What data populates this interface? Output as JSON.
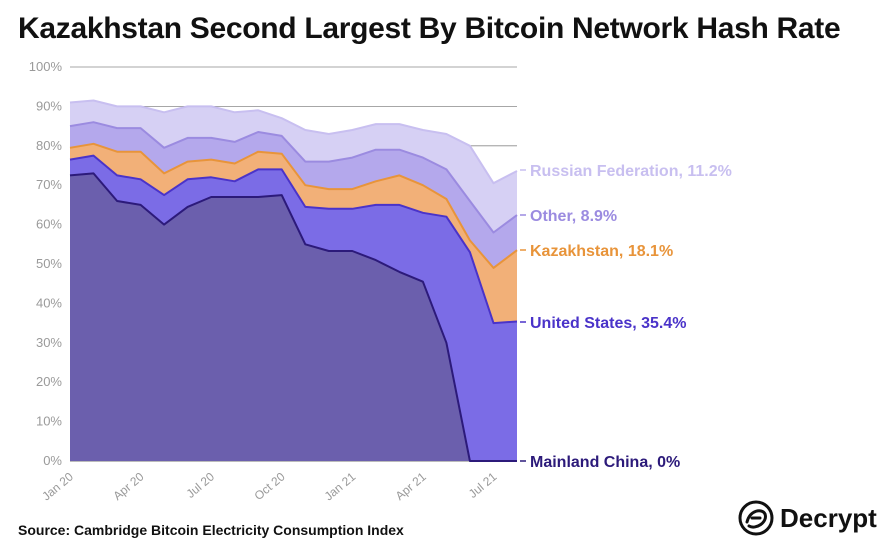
{
  "chart_data": {
    "type": "area",
    "title": "Kazakhstan Second Largest By Bitcoin Network Hash Rate",
    "source": "Source: Cambridge Bitcoin Electricity Consumption Index",
    "ylim": [
      0,
      100
    ],
    "yticks": [
      "0%",
      "10%",
      "20%",
      "30%",
      "40%",
      "50%",
      "60%",
      "70%",
      "80%",
      "90%",
      "100%"
    ],
    "yticks_values": [
      0,
      10,
      20,
      30,
      40,
      50,
      60,
      70,
      80,
      90,
      100
    ],
    "xlabels": [
      "Jan 20",
      "Apr 20",
      "Jul 20",
      "Oct 20",
      "Jan 21",
      "Apr 21",
      "Jul 21"
    ],
    "xlabel_index": [
      0,
      3,
      6,
      9,
      12,
      15,
      18
    ],
    "x": [
      "Jan 20",
      "Feb 20",
      "Mar 20",
      "Apr 20",
      "May 20",
      "Jun 20",
      "Jul 20",
      "Aug 20",
      "Sep 20",
      "Oct 20",
      "Nov 20",
      "Dec 20",
      "Jan 21",
      "Feb 21",
      "Mar 21",
      "Apr 21",
      "May 21",
      "Jun 21",
      "Jul 21",
      "Aug 21"
    ],
    "series": [
      {
        "name": "Mainland China",
        "label": "Mainland China, 0%",
        "color": "#6b5fad",
        "line": "#2c1a7a",
        "label_color": "#2c1a7a",
        "values": [
          72.5,
          73,
          66,
          65,
          60,
          64.5,
          67,
          67,
          67,
          67.5,
          55,
          53.3,
          53.3,
          51,
          48,
          45.5,
          30,
          0,
          0,
          0
        ]
      },
      {
        "name": "United States",
        "label": "United States, 35.4%",
        "color": "#7b6ce6",
        "line": "#4a33c9",
        "label_color": "#4a33c9",
        "values": [
          76.5,
          77.5,
          72.5,
          71.5,
          67.5,
          71.5,
          72,
          71,
          74,
          74,
          64.5,
          64,
          64,
          65,
          65,
          63,
          62,
          53,
          35,
          35.4
        ]
      },
      {
        "name": "Kazakhstan",
        "label": "Kazakhstan, 18.1%",
        "color": "#f2b078",
        "line": "#e8943a",
        "label_color": "#e8943a",
        "values": [
          79.5,
          80.5,
          78.5,
          78.5,
          73,
          76,
          76.5,
          75.5,
          78.5,
          78,
          70,
          69,
          69,
          71,
          72.5,
          70,
          66.5,
          56,
          49,
          53.5
        ]
      },
      {
        "name": "Other",
        "label": "Other, 8.9%",
        "color": "#b4a8ec",
        "line": "#9b8be0",
        "label_color": "#9b8be0",
        "values": [
          85,
          86,
          84.5,
          84.5,
          79.5,
          82,
          82,
          81,
          83.5,
          82.5,
          76,
          76,
          77,
          79,
          79,
          77,
          74,
          66,
          58,
          62.4
        ]
      },
      {
        "name": "Russian Federation",
        "label": "Russian Federation, 11.2%",
        "color": "#d6d0f4",
        "line": "#c8bff0",
        "label_color": "#c8bff0",
        "values": [
          91,
          91.5,
          90,
          90,
          88.5,
          90,
          90,
          88.5,
          89,
          87,
          84,
          83,
          84,
          85.5,
          85.5,
          84,
          83,
          80,
          70.5,
          73.6
        ]
      }
    ]
  },
  "brand": {
    "name": "Decrypt",
    "icon": "decrypt-logo-icon"
  }
}
